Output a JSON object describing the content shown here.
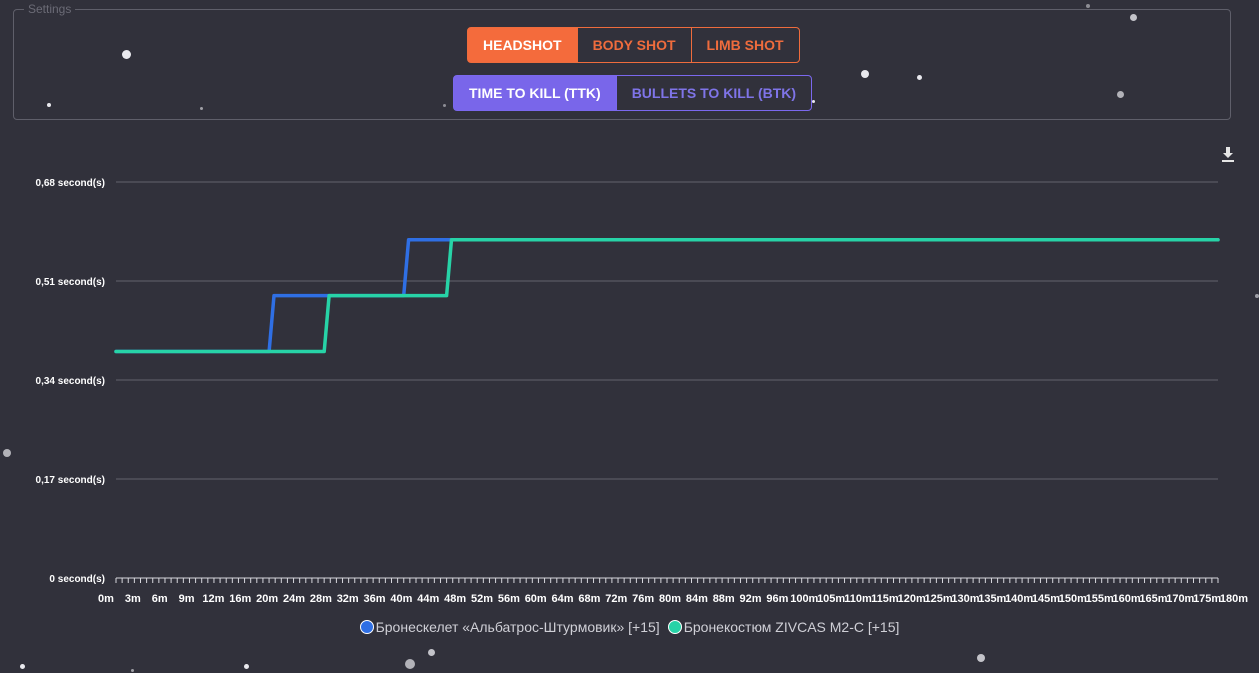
{
  "settings": {
    "legend": "Settings",
    "shot_buttons": [
      {
        "label": "HEADSHOT",
        "active": true
      },
      {
        "label": "BODY SHOT",
        "active": false
      },
      {
        "label": "LIMB SHOT",
        "active": false
      }
    ],
    "mode_buttons": [
      {
        "label": "TIME TO KILL (TTK)",
        "active": true
      },
      {
        "label": "BULLETS TO KILL (BTK)",
        "active": false
      }
    ]
  },
  "download_icon": "download-icon",
  "colors": {
    "background": "#31313b",
    "orange": "#f46b3c",
    "purple": "#7966ea",
    "series1": "#2f6fe4",
    "series2": "#27d3a7"
  },
  "chart_data": {
    "type": "line",
    "ylim": [
      0,
      0.68
    ],
    "y_ticks": [
      "0,68 second(s)",
      "0,51 second(s)",
      "0,34 second(s)",
      "0,17 second(s)",
      "0 second(s)"
    ],
    "y_tick_values": [
      0.68,
      0.51,
      0.34,
      0.17,
      0
    ],
    "xlim": [
      0,
      180
    ],
    "x_tick_labels": [
      "0m",
      "3m",
      "6m",
      "9m",
      "12m",
      "16m",
      "20m",
      "24m",
      "28m",
      "32m",
      "36m",
      "40m",
      "44m",
      "48m",
      "52m",
      "56m",
      "60m",
      "64m",
      "68m",
      "72m",
      "76m",
      "80m",
      "84m",
      "88m",
      "92m",
      "96m",
      "100m",
      "105m",
      "110m",
      "115m",
      "120m",
      "125m",
      "130m",
      "135m",
      "140m",
      "145m",
      "150m",
      "155m",
      "160m",
      "165m",
      "170m",
      "175m",
      "180m"
    ],
    "x_tick_values": [
      0,
      3,
      6,
      9,
      12,
      16,
      20,
      24,
      28,
      32,
      36,
      40,
      44,
      48,
      52,
      56,
      60,
      64,
      68,
      72,
      76,
      80,
      84,
      88,
      92,
      96,
      100,
      105,
      110,
      115,
      120,
      125,
      130,
      135,
      140,
      145,
      150,
      155,
      160,
      165,
      170,
      175,
      180
    ],
    "series": [
      {
        "name": "Бронескелет «Альбатрос-Штурмовик» [+15]",
        "color": "#2f6fe4",
        "x": [
          0,
          25,
          25.8,
          47,
          47.8,
          180
        ],
        "y": [
          0.389,
          0.389,
          0.485,
          0.485,
          0.581,
          0.581
        ]
      },
      {
        "name": "Бронекостюм ZIVCAS M2-C [+15]",
        "color": "#27d3a7",
        "x": [
          0,
          34,
          34.8,
          54,
          54.8,
          180
        ],
        "y": [
          0.389,
          0.389,
          0.485,
          0.485,
          0.581,
          0.581
        ]
      }
    ]
  }
}
